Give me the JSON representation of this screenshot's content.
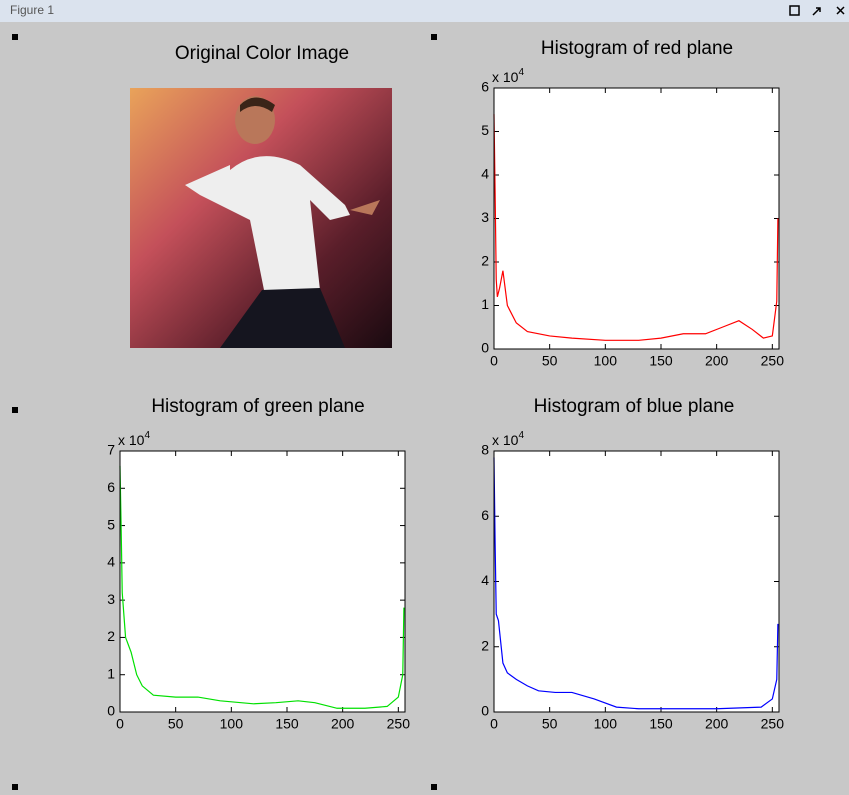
{
  "window": {
    "title": "Figure 1"
  },
  "image_panel": {
    "title": "Original Color Image"
  },
  "chart_data": [
    {
      "type": "line",
      "title": "Histogram of red plane",
      "multiplier": {
        "base": "x 10",
        "power": "4"
      },
      "color": "#ff0000",
      "x": [
        0,
        1,
        2,
        3,
        5,
        8,
        12,
        20,
        30,
        50,
        70,
        100,
        130,
        150,
        170,
        190,
        205,
        220,
        232,
        242,
        250,
        254,
        255
      ],
      "values": [
        5.4,
        3.6,
        1.6,
        1.2,
        1.4,
        1.8,
        1.0,
        0.6,
        0.4,
        0.3,
        0.25,
        0.2,
        0.2,
        0.25,
        0.35,
        0.35,
        0.5,
        0.65,
        0.45,
        0.25,
        0.3,
        1.1,
        3.0
      ],
      "xlim": [
        0,
        256
      ],
      "xticks": [
        0,
        50,
        100,
        150,
        200,
        250
      ],
      "ylim": [
        0,
        6
      ],
      "yticks": [
        0,
        1,
        2,
        3,
        4,
        5,
        6
      ]
    },
    {
      "type": "line",
      "title": "Histogram of green plane",
      "multiplier": {
        "base": "x 10",
        "power": "4"
      },
      "color": "#00e000",
      "x": [
        0,
        1,
        2,
        5,
        10,
        15,
        20,
        30,
        50,
        70,
        90,
        120,
        140,
        160,
        175,
        195,
        220,
        240,
        250,
        254,
        255
      ],
      "values": [
        6.6,
        5.0,
        3.2,
        2.0,
        1.6,
        1.0,
        0.7,
        0.45,
        0.4,
        0.4,
        0.3,
        0.22,
        0.25,
        0.3,
        0.25,
        0.1,
        0.1,
        0.15,
        0.4,
        1.0,
        2.8
      ],
      "xlim": [
        0,
        256
      ],
      "xticks": [
        0,
        50,
        100,
        150,
        200,
        250
      ],
      "ylim": [
        0,
        7
      ],
      "yticks": [
        0,
        1,
        2,
        3,
        4,
        5,
        6,
        7
      ]
    },
    {
      "type": "line",
      "title": "Histogram of blue plane",
      "multiplier": {
        "base": "x 10",
        "power": "4"
      },
      "color": "#0000ff",
      "x": [
        0,
        1,
        2,
        4,
        8,
        12,
        20,
        30,
        40,
        55,
        70,
        90,
        110,
        130,
        160,
        200,
        240,
        250,
        254,
        255
      ],
      "values": [
        7.8,
        5.2,
        3.0,
        2.8,
        1.5,
        1.2,
        1.0,
        0.8,
        0.65,
        0.6,
        0.6,
        0.4,
        0.15,
        0.1,
        0.1,
        0.1,
        0.15,
        0.4,
        1.0,
        2.7
      ],
      "xlim": [
        0,
        256
      ],
      "xticks": [
        0,
        50,
        100,
        150,
        200,
        250
      ],
      "ylim": [
        0,
        8
      ],
      "yticks": [
        0,
        2,
        4,
        6,
        8
      ]
    }
  ]
}
